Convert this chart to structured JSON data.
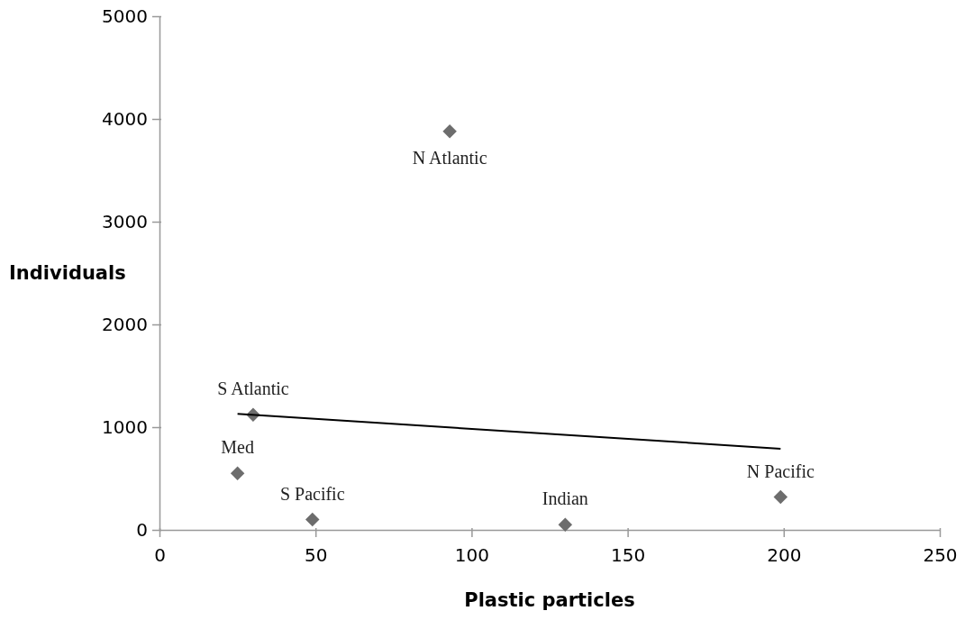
{
  "chart_data": {
    "type": "scatter",
    "xlabel": "Plastic particles",
    "ylabel": "Individuals",
    "xlim": [
      0,
      250
    ],
    "xticks": [
      0,
      50,
      100,
      150,
      200,
      250
    ],
    "ylim": [
      0,
      5000
    ],
    "yticks": [
      0,
      1000,
      2000,
      3000,
      4000,
      5000
    ],
    "grid": false,
    "series": [
      {
        "marker": "diamond",
        "color": "#6d6d6d",
        "x": [
          93,
          30,
          25,
          49,
          130,
          199
        ],
        "values": [
          3880,
          1120,
          550,
          100,
          50,
          320
        ]
      },
      {
        "type": "line",
        "color": "#000000",
        "x": [
          25,
          199
        ],
        "values": [
          1130,
          790
        ]
      }
    ],
    "annotations": [
      {
        "text": "N Atlantic",
        "x": 93,
        "y": 3880
      },
      {
        "text": "S Atlantic",
        "x": 30,
        "y": 1120
      },
      {
        "text": "Med",
        "x": 25,
        "y": 550
      },
      {
        "text": "S Pacific",
        "x": 49,
        "y": 100
      },
      {
        "text": "Indian",
        "x": 130,
        "y": 50
      },
      {
        "text": "N Pacific",
        "x": 199,
        "y": 320
      }
    ]
  }
}
